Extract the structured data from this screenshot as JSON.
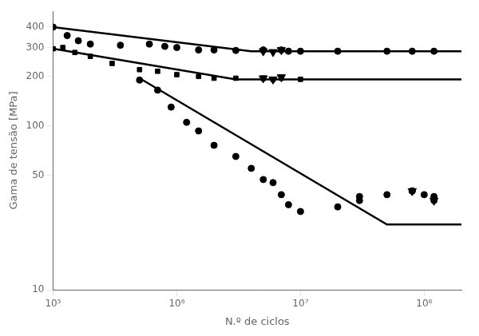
{
  "chart_data": {
    "type": "scatter",
    "xlabel": "N.º de ciclos",
    "ylabel": "Gama de tensão [MPa]",
    "log": true,
    "grid": false,
    "xlim": [
      100000.0,
      200000000.0
    ],
    "ylim": [
      10,
      500
    ],
    "xticks": [
      {
        "value": 100000.0,
        "label": "10⁵"
      },
      {
        "value": 1000000.0,
        "label": "10⁶"
      },
      {
        "value": 10000000.0,
        "label": "10⁷"
      },
      {
        "value": 100000000.0,
        "label": "10⁸"
      }
    ],
    "yticks": [
      10,
      50,
      100,
      200,
      300,
      400
    ],
    "series": [
      {
        "type": "line",
        "color": "#000000",
        "marker": "none",
        "line_style": "solid",
        "x": [
          100000.0,
          4000000.0,
          200000000.0
        ],
        "values": [
          400,
          285,
          285
        ]
      },
      {
        "type": "line",
        "color": "#000000",
        "marker": "none",
        "line_style": "solid",
        "x": [
          100000.0,
          3000000.0,
          200000000.0
        ],
        "values": [
          295,
          192,
          192
        ]
      },
      {
        "type": "line",
        "color": "#000000",
        "marker": "none",
        "line_style": "solid",
        "x": [
          500000.0,
          50000000.0,
          200000000.0
        ],
        "values": [
          195,
          25,
          25
        ]
      },
      {
        "type": "scatter",
        "color": "#000000",
        "marker": "circle",
        "x": [
          100000.0,
          130000.0,
          160000.0,
          200000.0,
          350000.0,
          600000.0,
          800000.0,
          1000000.0,
          1500000.0,
          2000000.0,
          3000000.0,
          5000000.0,
          7000000.0,
          8000000.0,
          10000000.0,
          20000000.0,
          50000000.0,
          80000000.0,
          120000000.0
        ],
        "values": [
          400,
          355,
          330,
          315,
          310,
          315,
          305,
          300,
          290,
          290,
          288,
          290,
          290,
          285,
          285,
          285,
          285,
          285,
          285
        ]
      },
      {
        "type": "scatter",
        "color": "#000000",
        "marker": "square",
        "x": [
          100000.0,
          120000.0,
          150000.0,
          200000.0,
          300000.0,
          500000.0,
          700000.0,
          1000000.0,
          1500000.0,
          2000000.0,
          3000000.0,
          5000000.0,
          7000000.0,
          10000000.0
        ],
        "values": [
          295,
          300,
          280,
          265,
          240,
          220,
          215,
          205,
          200,
          195,
          195,
          195,
          195,
          192
        ]
      },
      {
        "type": "scatter",
        "color": "#000000",
        "marker": "circle",
        "x": [
          500000.0,
          700000.0,
          900000.0,
          1200000.0,
          1500000.0,
          2000000.0,
          3000000.0,
          4000000.0,
          5000000.0,
          6000000.0,
          7000000.0,
          8000000.0,
          10000000.0,
          20000000.0,
          30000000.0,
          50000000.0,
          80000000.0,
          100000000.0,
          120000000.0
        ],
        "values": [
          190,
          165,
          130,
          105,
          93,
          76,
          65,
          55,
          47,
          45,
          38,
          33,
          30,
          32,
          37,
          38,
          40,
          38,
          37
        ]
      },
      {
        "type": "scatter",
        "color": "#000000",
        "marker": "circle",
        "x": [
          30000000.0
        ],
        "values": [
          35
        ]
      },
      {
        "type": "scatter",
        "color": "#000000",
        "marker": "triangle",
        "x": [
          5000000.0,
          6000000.0,
          7000000.0
        ],
        "values": [
          285,
          282,
          290
        ]
      },
      {
        "type": "scatter",
        "color": "#000000",
        "marker": "square",
        "x": [
          5000000.0,
          6000000.0,
          7000000.0
        ],
        "values": [
          195,
          192,
          198
        ]
      },
      {
        "type": "scatter",
        "color": "#000000",
        "marker": "triangle",
        "x": [
          5000000.0,
          6000000.0,
          7000000.0
        ],
        "values": [
          195,
          192,
          198
        ]
      },
      {
        "type": "scatter",
        "color": "#000000",
        "marker": "circle",
        "x": [
          80000000.0,
          120000000.0
        ],
        "values": [
          40,
          35
        ]
      },
      {
        "type": "scatter",
        "color": "#000000",
        "marker": "triangle",
        "x": [
          80000000.0,
          120000000.0
        ],
        "values": [
          40,
          35
        ]
      }
    ]
  }
}
